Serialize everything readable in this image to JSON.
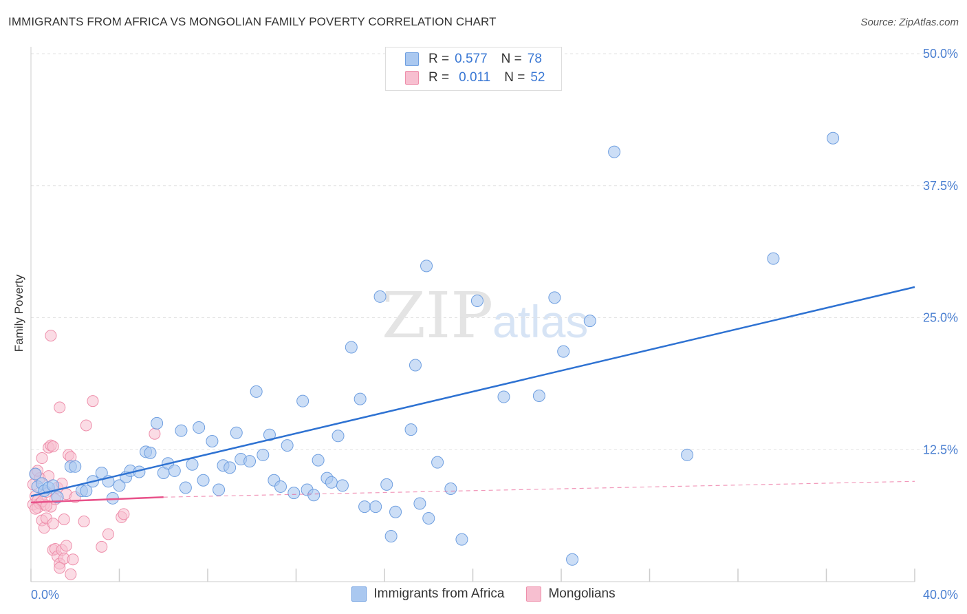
{
  "header": {
    "title": "IMMIGRANTS FROM AFRICA VS MONGOLIAN FAMILY POVERTY CORRELATION CHART",
    "source": "Source: ZipAtlas.com"
  },
  "watermark": {
    "zip": "ZIP",
    "atlas": "atlas"
  },
  "legend_top": [
    {
      "r_label": "R =",
      "r_value": "0.577",
      "n_label": "N =",
      "n_value": "78"
    },
    {
      "r_label": "R =",
      "r_value": "0.011",
      "n_label": "N =",
      "n_value": "52"
    }
  ],
  "legend_bottom": [
    {
      "label": "Immigrants from Africa"
    },
    {
      "label": "Mongolians"
    }
  ],
  "colors": {
    "blue_fill": "#aac8f0",
    "blue_stroke": "#6f9fe0",
    "blue_line": "#2e72d2",
    "pink_fill": "#f7bfd0",
    "pink_stroke": "#ee8fab",
    "pink_line": "#e8528a",
    "tick_text": "#4a7fd1",
    "grid": "#e2e2e2"
  },
  "chart_data": {
    "type": "scatter",
    "title": "IMMIGRANTS FROM AFRICA VS MONGOLIAN FAMILY POVERTY CORRELATION CHART",
    "xlabel": "",
    "ylabel": "Family Poverty",
    "xlim": [
      0,
      40
    ],
    "ylim": [
      0,
      50
    ],
    "x_tick_labels": [
      "0.0%",
      "40.0%"
    ],
    "y_ticks": [
      12.5,
      25.0,
      37.5,
      50.0
    ],
    "y_tick_labels": [
      "12.5%",
      "25.0%",
      "37.5%",
      "50.0%"
    ],
    "grid": "horizontal dashed",
    "legend_placement": "top-center",
    "series": [
      {
        "name": "Immigrants from Africa",
        "r": 0.577,
        "n": 78,
        "trend": {
          "x": [
            0.0,
            40.0
          ],
          "y": [
            8.1,
            27.9
          ]
        },
        "points": [
          [
            0.2,
            10.2
          ],
          [
            0.3,
            9.0
          ],
          [
            0.5,
            9.3
          ],
          [
            0.6,
            8.6
          ],
          [
            0.8,
            8.9
          ],
          [
            1.0,
            9.1
          ],
          [
            1.2,
            8.0
          ],
          [
            1.8,
            10.9
          ],
          [
            2.0,
            10.9
          ],
          [
            2.3,
            8.6
          ],
          [
            2.5,
            8.6
          ],
          [
            2.8,
            9.5
          ],
          [
            3.2,
            10.3
          ],
          [
            3.5,
            9.5
          ],
          [
            3.7,
            7.9
          ],
          [
            4.0,
            9.1
          ],
          [
            4.3,
            9.9
          ],
          [
            4.5,
            10.5
          ],
          [
            4.9,
            10.4
          ],
          [
            5.2,
            12.3
          ],
          [
            5.4,
            12.2
          ],
          [
            5.7,
            15.0
          ],
          [
            6.0,
            10.3
          ],
          [
            6.2,
            11.2
          ],
          [
            6.5,
            10.5
          ],
          [
            6.8,
            14.3
          ],
          [
            7.0,
            8.9
          ],
          [
            7.3,
            11.1
          ],
          [
            7.6,
            14.6
          ],
          [
            7.8,
            9.6
          ],
          [
            8.2,
            13.3
          ],
          [
            8.5,
            8.7
          ],
          [
            8.7,
            11.0
          ],
          [
            9.0,
            10.8
          ],
          [
            9.3,
            14.1
          ],
          [
            9.5,
            11.6
          ],
          [
            9.9,
            11.4
          ],
          [
            10.2,
            18.0
          ],
          [
            10.5,
            12.0
          ],
          [
            10.8,
            13.9
          ],
          [
            11.0,
            9.6
          ],
          [
            11.3,
            9.0
          ],
          [
            11.6,
            12.9
          ],
          [
            11.9,
            8.4
          ],
          [
            12.3,
            17.1
          ],
          [
            12.5,
            8.7
          ],
          [
            12.8,
            8.2
          ],
          [
            13.0,
            11.5
          ],
          [
            13.4,
            9.8
          ],
          [
            13.6,
            9.4
          ],
          [
            13.9,
            13.8
          ],
          [
            14.1,
            9.1
          ],
          [
            14.5,
            22.2
          ],
          [
            14.9,
            17.3
          ],
          [
            15.1,
            7.1
          ],
          [
            15.6,
            7.1
          ],
          [
            15.8,
            27.0
          ],
          [
            16.1,
            9.2
          ],
          [
            16.3,
            4.3
          ],
          [
            16.5,
            6.6
          ],
          [
            17.2,
            14.4
          ],
          [
            17.4,
            20.5
          ],
          [
            17.6,
            7.4
          ],
          [
            17.9,
            29.9
          ],
          [
            18.0,
            6.0
          ],
          [
            18.4,
            11.3
          ],
          [
            19.0,
            8.8
          ],
          [
            19.5,
            4.0
          ],
          [
            20.2,
            26.6
          ],
          [
            21.4,
            17.5
          ],
          [
            23.0,
            17.6
          ],
          [
            23.7,
            26.9
          ],
          [
            24.1,
            21.8
          ],
          [
            25.3,
            24.7
          ],
          [
            26.4,
            40.7
          ],
          [
            29.7,
            12.0
          ],
          [
            33.6,
            30.6
          ],
          [
            36.3,
            42.0
          ],
          [
            24.5,
            2.1
          ]
        ]
      },
      {
        "name": "Mongolians",
        "r": 0.011,
        "n": 52,
        "trend_solid": {
          "x": [
            0.0,
            6.0
          ],
          "y": [
            7.5,
            8.0
          ]
        },
        "trend_dashed": {
          "x": [
            6.0,
            40.0
          ],
          "y": [
            8.0,
            9.5
          ]
        },
        "points": [
          [
            0.1,
            9.2
          ],
          [
            0.1,
            7.3
          ],
          [
            0.2,
            10.2
          ],
          [
            0.2,
            8.1
          ],
          [
            0.3,
            7.7
          ],
          [
            0.3,
            7.0
          ],
          [
            0.4,
            9.8
          ],
          [
            0.4,
            7.4
          ],
          [
            0.5,
            11.7
          ],
          [
            0.5,
            5.8
          ],
          [
            0.6,
            5.1
          ],
          [
            0.6,
            7.3
          ],
          [
            0.7,
            8.5
          ],
          [
            0.7,
            6.0
          ],
          [
            0.8,
            12.7
          ],
          [
            0.8,
            10.0
          ],
          [
            0.9,
            12.9
          ],
          [
            0.9,
            7.1
          ],
          [
            0.9,
            23.3
          ],
          [
            1.0,
            5.5
          ],
          [
            1.0,
            3.0
          ],
          [
            1.1,
            3.1
          ],
          [
            1.1,
            7.8
          ],
          [
            1.2,
            2.4
          ],
          [
            1.2,
            8.9
          ],
          [
            1.3,
            1.7
          ],
          [
            1.3,
            16.5
          ],
          [
            1.4,
            3.0
          ],
          [
            1.4,
            9.3
          ],
          [
            1.5,
            2.2
          ],
          [
            1.5,
            5.9
          ],
          [
            1.6,
            3.4
          ],
          [
            1.6,
            8.3
          ],
          [
            1.7,
            12.0
          ],
          [
            1.8,
            11.8
          ],
          [
            1.8,
            0.7
          ],
          [
            1.9,
            2.1
          ],
          [
            2.0,
            8.0
          ],
          [
            2.4,
            5.7
          ],
          [
            2.5,
            14.8
          ],
          [
            2.8,
            17.1
          ],
          [
            3.2,
            3.3
          ],
          [
            3.5,
            4.5
          ],
          [
            4.1,
            6.1
          ],
          [
            4.2,
            6.4
          ],
          [
            5.6,
            14.0
          ],
          [
            0.3,
            10.5
          ],
          [
            0.5,
            7.6
          ],
          [
            0.7,
            7.2
          ],
          [
            1.0,
            12.8
          ],
          [
            1.3,
            1.3
          ],
          [
            0.2,
            6.9
          ]
        ]
      }
    ]
  }
}
